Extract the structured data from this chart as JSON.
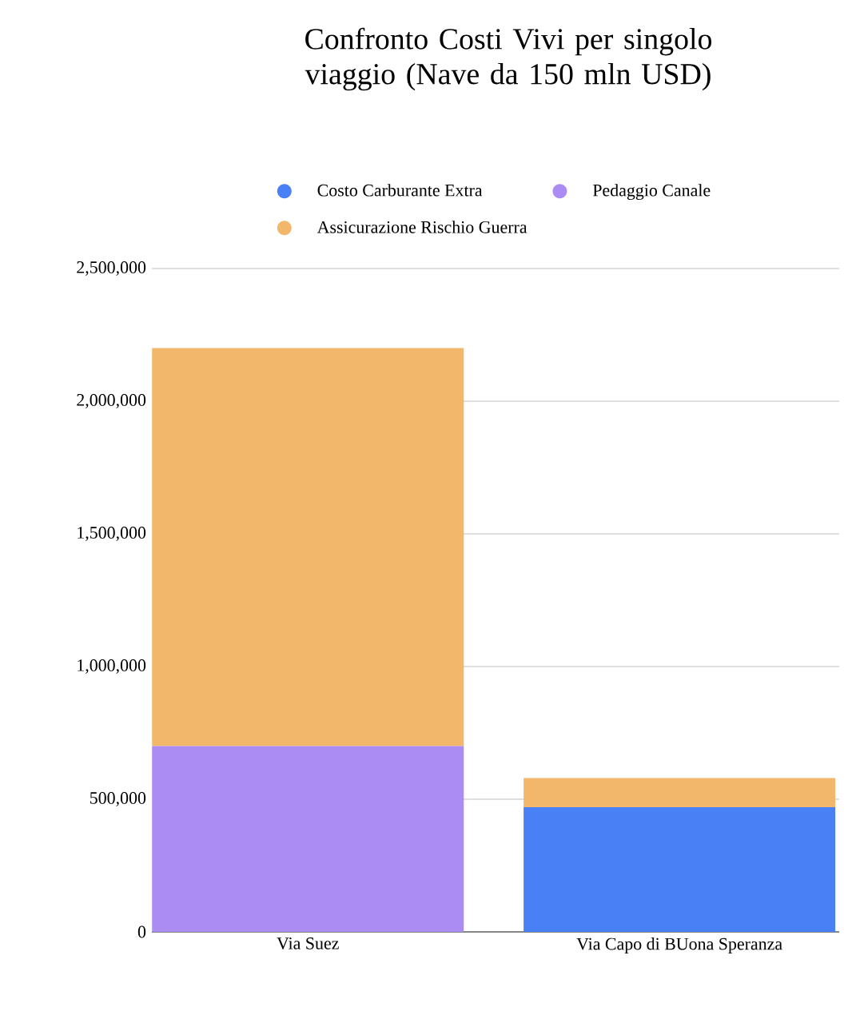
{
  "chart_data": {
    "type": "bar",
    "stacked": true,
    "title": "Confronto Costi Vivi per singolo viaggio (Nave da 150 mln USD)",
    "categories": [
      "Via Suez",
      "Via Capo di BUona Speranza"
    ],
    "series": [
      {
        "name": "Costo Carburante Extra",
        "color": "#4a80f5",
        "values": [
          0,
          470000
        ]
      },
      {
        "name": "Pedaggio Canale",
        "color": "#ab8cf3",
        "values": [
          700000,
          0
        ]
      },
      {
        "name": "Assicurazione Rischio Guerra",
        "color": "#f2b76b",
        "values": [
          1500000,
          110000
        ]
      }
    ],
    "ylim": [
      0,
      2500000
    ],
    "yticks": [
      0,
      {
        "value": 500000,
        "label": "500,000"
      },
      {
        "value": 1000000,
        "label": "1,000,000"
      },
      {
        "value": 1500000,
        "label": "1,500,000"
      },
      {
        "value": 2000000,
        "label": "2,000,000"
      },
      {
        "value": 2500000,
        "label": "2,500,000"
      }
    ],
    "grid": "y",
    "legend": "top"
  }
}
